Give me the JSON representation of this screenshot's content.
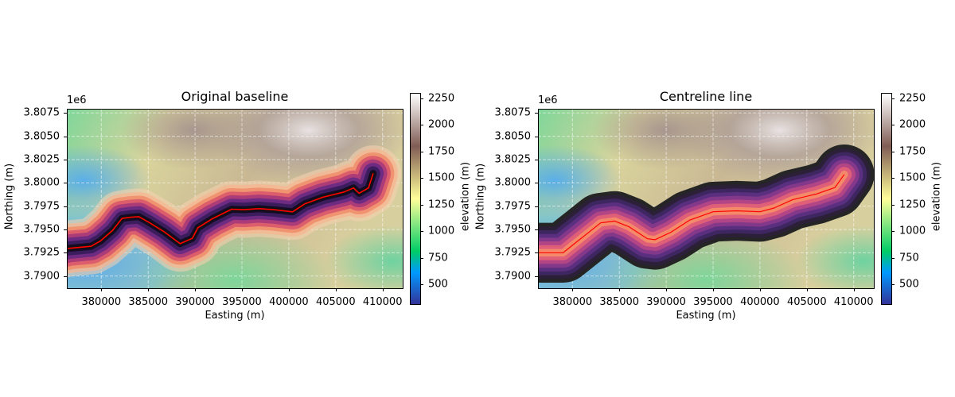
{
  "chart_data": [
    {
      "type": "heatmap",
      "title": "Original baseline",
      "xlabel": "Easting (m)",
      "ylabel": "Northing (m)",
      "y_offset_label": "1e6",
      "xlim": [
        376320,
        412150
      ],
      "ylim": [
        3788690,
        3807950
      ],
      "xticks": [
        380000,
        385000,
        390000,
        395000,
        400000,
        405000,
        410000
      ],
      "xtick_labels": [
        "380000",
        "385000",
        "390000",
        "395000",
        "400000",
        "405000",
        "410000"
      ],
      "yticks": [
        3790000,
        3792500,
        3795000,
        3797500,
        3800000,
        3802500,
        3805000,
        3807500
      ],
      "ytick_labels": [
        "3.7900",
        "3.7925",
        "3.7950",
        "3.7975",
        "3.8000",
        "3.8025",
        "3.8050",
        "3.8075"
      ],
      "grid": true,
      "colorbar": {
        "label": "elevation (m)",
        "clim": [
          314,
          2295
        ],
        "ticks": [
          500,
          750,
          1000,
          1250,
          1500,
          1750,
          2000,
          2250
        ],
        "tick_labels": [
          "500",
          "750",
          "1000",
          "1250",
          "1500",
          "1750",
          "2000",
          "2250"
        ],
        "colormap": "terrain"
      },
      "buffer_m": 3000,
      "buffer_style": "dark-center",
      "line_color": "#ff0000",
      "line": [
        [
          376320,
          3792900
        ],
        [
          376400,
          3792960
        ],
        [
          378900,
          3793190
        ],
        [
          379900,
          3793760
        ],
        [
          381200,
          3794900
        ],
        [
          382200,
          3796180
        ],
        [
          383200,
          3796320
        ],
        [
          384000,
          3796370
        ],
        [
          385100,
          3795750
        ],
        [
          386700,
          3794750
        ],
        [
          388400,
          3793470
        ],
        [
          389700,
          3794040
        ],
        [
          390300,
          3795180
        ],
        [
          391900,
          3796180
        ],
        [
          393900,
          3797170
        ],
        [
          395200,
          3797120
        ],
        [
          396800,
          3797230
        ],
        [
          398400,
          3797120
        ],
        [
          400400,
          3796890
        ],
        [
          401700,
          3797740
        ],
        [
          403600,
          3798450
        ],
        [
          405900,
          3799020
        ],
        [
          406900,
          3799450
        ],
        [
          407500,
          3798880
        ],
        [
          408500,
          3799450
        ],
        [
          409000,
          3801010
        ]
      ]
    },
    {
      "type": "heatmap",
      "title": "Centreline line",
      "xlabel": "Easting (m)",
      "ylabel": "Northing (m)",
      "y_offset_label": "1e6",
      "xlim": [
        376320,
        412150
      ],
      "ylim": [
        3788690,
        3807950
      ],
      "xticks": [
        380000,
        385000,
        390000,
        395000,
        400000,
        405000,
        410000
      ],
      "xtick_labels": [
        "380000",
        "385000",
        "390000",
        "395000",
        "400000",
        "405000",
        "410000"
      ],
      "yticks": [
        3790000,
        3792500,
        3795000,
        3797500,
        3800000,
        3802500,
        3805000,
        3807500
      ],
      "ytick_labels": [
        "3.7900",
        "3.7925",
        "3.7950",
        "3.7975",
        "3.8000",
        "3.8025",
        "3.8050",
        "3.8075"
      ],
      "grid": true,
      "colorbar": {
        "label": "elevation (m)",
        "clim": [
          314,
          2295
        ],
        "ticks": [
          500,
          750,
          1000,
          1250,
          1500,
          1750,
          2000,
          2250
        ],
        "tick_labels": [
          "500",
          "750",
          "1000",
          "1250",
          "1500",
          "1750",
          "2000",
          "2250"
        ],
        "colormap": "terrain"
      },
      "buffer_m": 3200,
      "buffer_style": "dark-edge",
      "line_color": "#ff0000",
      "line": [
        [
          376320,
          3792500
        ],
        [
          379000,
          3792500
        ],
        [
          380000,
          3793300
        ],
        [
          381500,
          3794500
        ],
        [
          383000,
          3795700
        ],
        [
          384500,
          3795900
        ],
        [
          386000,
          3795300
        ],
        [
          388000,
          3794000
        ],
        [
          388800,
          3793900
        ],
        [
          390500,
          3794700
        ],
        [
          392500,
          3796000
        ],
        [
          395000,
          3796900
        ],
        [
          397500,
          3797000
        ],
        [
          400000,
          3796900
        ],
        [
          401500,
          3797300
        ],
        [
          403500,
          3798200
        ],
        [
          406000,
          3798800
        ],
        [
          408000,
          3799500
        ],
        [
          409000,
          3800900
        ]
      ]
    }
  ]
}
